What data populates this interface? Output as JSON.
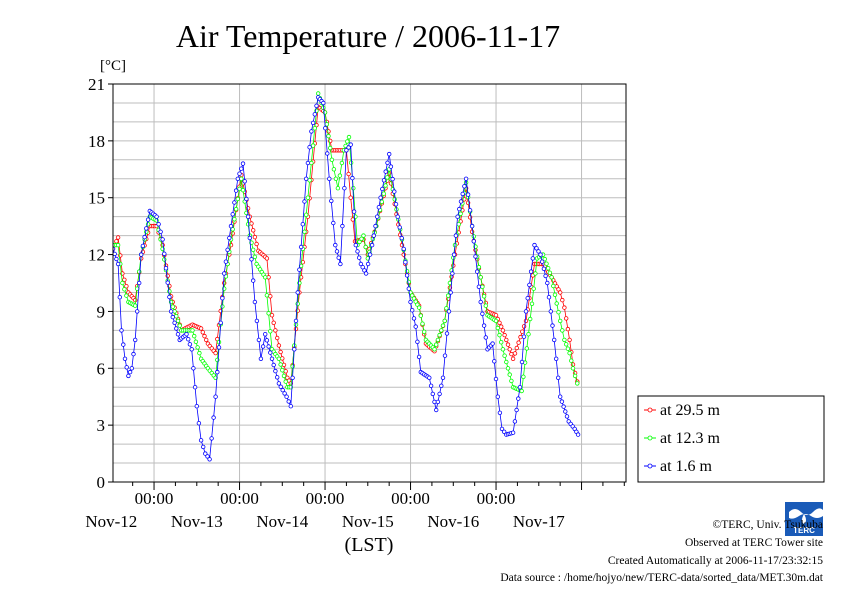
{
  "chart_data": {
    "type": "line",
    "title": "Air Temperature / 2006-11-17",
    "ylabel": "[°C]",
    "xlabel": "(LST)",
    "ylim": [
      0,
      21
    ],
    "yticks": [
      0,
      3,
      6,
      9,
      12,
      15,
      18,
      21
    ],
    "x_unit": "days since Nov-11 00:00 LST",
    "xlim": [
      0.52,
      6.52
    ],
    "grid": true,
    "legend_position": "right",
    "midnight_tick_label": "00:00",
    "day_labels": [
      {
        "x": 1.0,
        "label": "Nov-12"
      },
      {
        "x": 2.0,
        "label": "Nov-13"
      },
      {
        "x": 3.0,
        "label": "Nov-14"
      },
      {
        "x": 4.0,
        "label": "Nov-15"
      },
      {
        "x": 5.0,
        "label": "Nov-16"
      },
      {
        "x": 6.0,
        "label": "Nov-17"
      }
    ],
    "series": [
      {
        "name": "at 29.5 m",
        "color": "#ff0000",
        "points": [
          [
            0.52,
            12.3
          ],
          [
            0.58,
            12.9
          ],
          [
            0.63,
            11.0
          ],
          [
            0.7,
            10.0
          ],
          [
            0.78,
            9.6
          ],
          [
            0.85,
            11.8
          ],
          [
            0.95,
            13.5
          ],
          [
            1.03,
            13.5
          ],
          [
            1.1,
            12.5
          ],
          [
            1.2,
            9.8
          ],
          [
            1.32,
            8.0
          ],
          [
            1.45,
            8.3
          ],
          [
            1.55,
            8.1
          ],
          [
            1.63,
            7.3
          ],
          [
            1.72,
            6.8
          ],
          [
            1.82,
            10.5
          ],
          [
            1.9,
            12.5
          ],
          [
            2.02,
            16.2
          ],
          [
            2.12,
            14.0
          ],
          [
            2.22,
            12.2
          ],
          [
            2.32,
            11.8
          ],
          [
            2.38,
            8.8
          ],
          [
            2.46,
            7.2
          ],
          [
            2.56,
            5.5
          ],
          [
            2.6,
            5.2
          ],
          [
            2.7,
            10.0
          ],
          [
            2.8,
            14.0
          ],
          [
            2.92,
            19.8
          ],
          [
            3.0,
            19.5
          ],
          [
            3.08,
            17.5
          ],
          [
            3.18,
            17.5
          ],
          [
            3.25,
            17.5
          ],
          [
            3.3,
            15.0
          ],
          [
            3.35,
            12.7
          ],
          [
            3.45,
            12.8
          ],
          [
            3.5,
            12.0
          ],
          [
            3.6,
            13.5
          ],
          [
            3.75,
            16.3
          ],
          [
            3.9,
            12.5
          ],
          [
            4.0,
            10.0
          ],
          [
            4.1,
            9.3
          ],
          [
            4.18,
            7.3
          ],
          [
            4.28,
            6.9
          ],
          [
            4.4,
            8.5
          ],
          [
            4.52,
            12.0
          ],
          [
            4.65,
            15.5
          ],
          [
            4.72,
            13.2
          ],
          [
            4.82,
            10.8
          ],
          [
            4.9,
            9.0
          ],
          [
            5.0,
            8.8
          ],
          [
            5.08,
            8.0
          ],
          [
            5.2,
            6.5
          ],
          [
            5.35,
            8.5
          ],
          [
            5.45,
            11.5
          ],
          [
            5.55,
            11.5
          ],
          [
            5.65,
            10.8
          ],
          [
            5.75,
            10.0
          ],
          [
            5.8,
            9.2
          ],
          [
            5.86,
            7.5
          ],
          [
            5.9,
            6.2
          ],
          [
            5.95,
            5.3
          ]
        ]
      },
      {
        "name": "at 12.3 m",
        "color": "#00ff00",
        "points": [
          [
            0.52,
            12.5
          ],
          [
            0.58,
            12.5
          ],
          [
            0.63,
            10.5
          ],
          [
            0.7,
            9.5
          ],
          [
            0.78,
            9.3
          ],
          [
            0.85,
            12.0
          ],
          [
            0.95,
            14.0
          ],
          [
            1.03,
            13.8
          ],
          [
            1.1,
            12.3
          ],
          [
            1.2,
            9.5
          ],
          [
            1.32,
            8.0
          ],
          [
            1.45,
            8.0
          ],
          [
            1.55,
            6.5
          ],
          [
            1.63,
            6.0
          ],
          [
            1.72,
            5.5
          ],
          [
            1.82,
            10.2
          ],
          [
            1.9,
            12.8
          ],
          [
            2.02,
            16.0
          ],
          [
            2.12,
            13.0
          ],
          [
            2.2,
            11.5
          ],
          [
            2.3,
            10.8
          ],
          [
            2.38,
            7.0
          ],
          [
            2.46,
            6.5
          ],
          [
            2.56,
            5.0
          ],
          [
            2.6,
            5.0
          ],
          [
            2.7,
            10.5
          ],
          [
            2.8,
            15.0
          ],
          [
            2.92,
            20.5
          ],
          [
            3.0,
            19.5
          ],
          [
            3.08,
            17.0
          ],
          [
            3.15,
            15.5
          ],
          [
            3.22,
            17.5
          ],
          [
            3.28,
            18.2
          ],
          [
            3.33,
            15.5
          ],
          [
            3.38,
            12.5
          ],
          [
            3.45,
            13.0
          ],
          [
            3.5,
            11.8
          ],
          [
            3.6,
            13.5
          ],
          [
            3.75,
            16.5
          ],
          [
            3.9,
            12.8
          ],
          [
            4.0,
            10.0
          ],
          [
            4.1,
            9.2
          ],
          [
            4.18,
            7.5
          ],
          [
            4.28,
            7.0
          ],
          [
            4.4,
            8.5
          ],
          [
            4.52,
            12.5
          ],
          [
            4.65,
            15.8
          ],
          [
            4.72,
            13.5
          ],
          [
            4.82,
            10.8
          ],
          [
            4.9,
            8.8
          ],
          [
            5.0,
            8.5
          ],
          [
            5.08,
            7.0
          ],
          [
            5.2,
            5.0
          ],
          [
            5.3,
            4.8
          ],
          [
            5.38,
            7.8
          ],
          [
            5.48,
            11.8
          ],
          [
            5.55,
            12.0
          ],
          [
            5.65,
            10.8
          ],
          [
            5.75,
            8.5
          ],
          [
            5.8,
            7.5
          ],
          [
            5.86,
            6.8
          ],
          [
            5.9,
            6.0
          ],
          [
            5.95,
            5.2
          ]
        ]
      },
      {
        "name": "at 1.6 m",
        "color": "#0000ff",
        "points": [
          [
            0.52,
            12.3
          ],
          [
            0.58,
            11.5
          ],
          [
            0.62,
            8.0
          ],
          [
            0.66,
            6.5
          ],
          [
            0.7,
            5.6
          ],
          [
            0.74,
            6.0
          ],
          [
            0.78,
            7.5
          ],
          [
            0.85,
            12.0
          ],
          [
            0.95,
            14.3
          ],
          [
            1.03,
            14.0
          ],
          [
            1.1,
            12.8
          ],
          [
            1.2,
            9.0
          ],
          [
            1.3,
            7.5
          ],
          [
            1.38,
            7.8
          ],
          [
            1.44,
            7.0
          ],
          [
            1.5,
            4.0
          ],
          [
            1.55,
            2.2
          ],
          [
            1.6,
            1.5
          ],
          [
            1.65,
            1.2
          ],
          [
            1.72,
            4.5
          ],
          [
            1.82,
            11.0
          ],
          [
            1.9,
            13.5
          ],
          [
            1.98,
            16.0
          ],
          [
            2.04,
            16.8
          ],
          [
            2.1,
            14.0
          ],
          [
            2.18,
            9.5
          ],
          [
            2.25,
            6.5
          ],
          [
            2.3,
            7.8
          ],
          [
            2.38,
            6.5
          ],
          [
            2.46,
            5.2
          ],
          [
            2.55,
            4.5
          ],
          [
            2.6,
            4.0
          ],
          [
            2.68,
            10.0
          ],
          [
            2.78,
            16.0
          ],
          [
            2.84,
            18.5
          ],
          [
            2.92,
            20.3
          ],
          [
            2.98,
            20.0
          ],
          [
            3.05,
            16.0
          ],
          [
            3.12,
            12.5
          ],
          [
            3.18,
            11.5
          ],
          [
            3.25,
            17.5
          ],
          [
            3.3,
            17.8
          ],
          [
            3.36,
            12.5
          ],
          [
            3.42,
            11.5
          ],
          [
            3.48,
            11.0
          ],
          [
            3.55,
            12.5
          ],
          [
            3.65,
            15.0
          ],
          [
            3.75,
            17.3
          ],
          [
            3.85,
            14.0
          ],
          [
            3.92,
            12.3
          ],
          [
            4.0,
            9.5
          ],
          [
            4.06,
            8.2
          ],
          [
            4.12,
            5.8
          ],
          [
            4.22,
            5.5
          ],
          [
            4.3,
            3.8
          ],
          [
            4.38,
            5.5
          ],
          [
            4.45,
            9.0
          ],
          [
            4.55,
            14.0
          ],
          [
            4.65,
            16.0
          ],
          [
            4.72,
            13.5
          ],
          [
            4.82,
            9.5
          ],
          [
            4.9,
            7.0
          ],
          [
            4.96,
            7.3
          ],
          [
            5.02,
            4.5
          ],
          [
            5.07,
            2.8
          ],
          [
            5.12,
            2.5
          ],
          [
            5.2,
            2.6
          ],
          [
            5.28,
            5.0
          ],
          [
            5.35,
            9.0
          ],
          [
            5.45,
            12.5
          ],
          [
            5.52,
            12.0
          ],
          [
            5.6,
            10.5
          ],
          [
            5.68,
            7.5
          ],
          [
            5.75,
            4.5
          ],
          [
            5.85,
            3.2
          ],
          [
            5.92,
            2.8
          ],
          [
            5.96,
            2.5
          ]
        ]
      }
    ]
  },
  "credits": {
    "copyright": "©TERC, Univ. Tsukuba",
    "observed": "Observed at TERC Tower site",
    "created": "Created Automatically at 2006-11-17/23:32:15",
    "source": "Data source : /home/hojyo/new/TERC-data/sorted_data/MET.30m.dat",
    "logo_text": "TERC"
  }
}
